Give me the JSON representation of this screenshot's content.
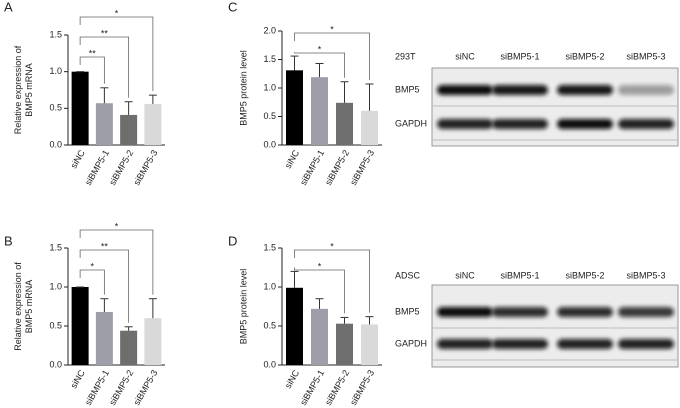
{
  "chart_data": [
    {
      "type": "bar",
      "panel": "A",
      "ylabel": [
        "Relative expression of",
        "BMP5 mRNA"
      ],
      "categories": [
        "siNC",
        "siBMP5-1",
        "siBMP5-2",
        "siBMP5-3"
      ],
      "values": [
        1.0,
        0.57,
        0.41,
        0.56
      ],
      "errors": [
        0,
        0.21,
        0.18,
        0.12
      ],
      "colors": [
        "#000000",
        "#9e9ea8",
        "#6e6e6e",
        "#d9d9d9"
      ],
      "ylim": [
        0,
        1.5
      ],
      "yticks": [
        {
          "value": 0,
          "label": "0.0"
        },
        0.5,
        {
          "value": 1,
          "label": "1.0"
        },
        1.5
      ],
      "significance": [
        {
          "groups": [
            "siNC",
            "siBMP5-1"
          ],
          "label": "**"
        },
        {
          "groups": [
            "siNC",
            "siBMP5-2"
          ],
          "label": "**"
        },
        {
          "groups": [
            "siNC",
            "siBMP5-3"
          ],
          "label": "*"
        }
      ]
    },
    {
      "type": "bar",
      "panel": "B",
      "ylabel": [
        "Relative expression of",
        "BMP5 mRNA"
      ],
      "categories": [
        "siNC",
        "siBMP5-1",
        "siBMP5-2",
        "siBMP5-3"
      ],
      "values": [
        1.0,
        0.68,
        0.44,
        0.6
      ],
      "errors": [
        0,
        0.17,
        0.05,
        0.25
      ],
      "colors": [
        "#000000",
        "#9e9ea8",
        "#6e6e6e",
        "#d9d9d9"
      ],
      "ylim": [
        0,
        1.5
      ],
      "yticks": [
        {
          "value": 0,
          "label": "0.0"
        },
        0.5,
        {
          "value": 1,
          "label": "1.0"
        },
        1.5
      ],
      "significance": [
        {
          "groups": [
            "siNC",
            "siBMP5-1"
          ],
          "label": "*"
        },
        {
          "groups": [
            "siNC",
            "siBMP5-2"
          ],
          "label": "**"
        },
        {
          "groups": [
            "siNC",
            "siBMP5-3"
          ],
          "label": "*"
        }
      ]
    },
    {
      "type": "bar",
      "panel": "C",
      "ylabel": [
        "BMP5 protein level"
      ],
      "categories": [
        "siNC",
        "siBMP5-1",
        "siBMP5-2",
        "siBMP5-3"
      ],
      "values": [
        1.31,
        1.19,
        0.74,
        0.6
      ],
      "errors": [
        0.25,
        0.24,
        0.37,
        0.47
      ],
      "colors": [
        "#000000",
        "#9e9ea8",
        "#6e6e6e",
        "#d9d9d9"
      ],
      "ylim": [
        0,
        2
      ],
      "yticks": [
        {
          "value": 0,
          "label": "0.0"
        },
        0.5,
        {
          "value": 1,
          "label": "1.0"
        },
        1.5,
        {
          "value": 2,
          "label": "2.0"
        }
      ],
      "significance": [
        {
          "groups": [
            "siNC",
            "siBMP5-2"
          ],
          "label": "*"
        },
        {
          "groups": [
            "siNC",
            "siBMP5-3"
          ],
          "label": "*"
        }
      ]
    },
    {
      "type": "bar",
      "panel": "D",
      "ylabel": [
        "BMP5 protein level"
      ],
      "categories": [
        "siNC",
        "siBMP5-1",
        "siBMP5-2",
        "siBMP5-3"
      ],
      "values": [
        0.99,
        0.72,
        0.53,
        0.52
      ],
      "errors": [
        0.21,
        0.13,
        0.08,
        0.1
      ],
      "colors": [
        "#000000",
        "#9e9ea8",
        "#6e6e6e",
        "#d9d9d9"
      ],
      "ylim": [
        0,
        1.5
      ],
      "yticks": [
        {
          "value": 0,
          "label": "0.0"
        },
        0.5,
        {
          "value": 1,
          "label": "1.0"
        },
        1.5
      ],
      "significance": [
        {
          "groups": [
            "siNC",
            "siBMP5-2"
          ],
          "label": "*"
        },
        {
          "groups": [
            "siNC",
            "siBMP5-3"
          ],
          "label": "*"
        }
      ]
    }
  ],
  "blots": [
    {
      "cell_line": "293T",
      "lanes": [
        "siNC",
        "siBMP5-1",
        "siBMP5-2",
        "siBMP5-3"
      ],
      "rows": [
        "BMP5",
        "GAPDH"
      ]
    },
    {
      "cell_line": "ADSC",
      "lanes": [
        "siNC",
        "siBMP5-1",
        "siBMP5-2",
        "siBMP5-3"
      ],
      "rows": [
        "BMP5",
        "GAPDH"
      ]
    }
  ]
}
